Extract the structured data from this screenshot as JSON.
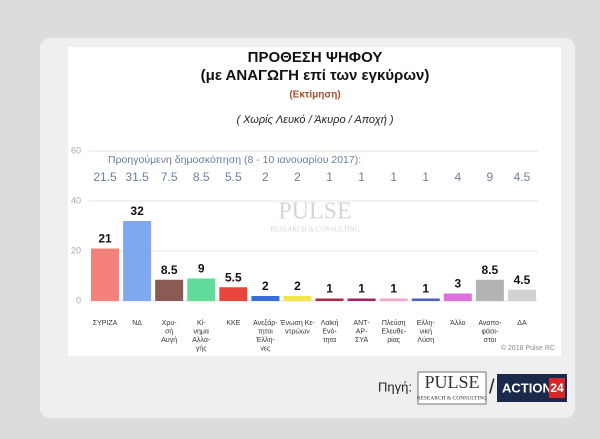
{
  "chart_data": {
    "type": "bar",
    "title": "ΠΡΟΘΕΣΗ ΨΗΦΟΥ",
    "subtitle": "(με ΑΝΑΓΩΓΗ επί των εγκύρων)",
    "estimate_note": "(Εκτίμηση)",
    "filter_note": "( Χωρίς Λευκό / Άκυρο / Αποχή )",
    "previous_label": "Προηγούμενη δημοσκόπηση (8 - 10 ιανουαρίου 2017):",
    "previous_values": [
      21.5,
      31.5,
      7.5,
      8.5,
      5.5,
      2,
      2,
      1,
      1,
      1,
      1,
      4,
      9,
      4.5
    ],
    "categories": [
      [
        "ΣΥΡΙΖΑ"
      ],
      [
        "ΝΔ"
      ],
      [
        "Χρυ-",
        "σή",
        "Αυγή"
      ],
      [
        "Κί-",
        "νημα",
        "Αλλα-",
        "γής"
      ],
      [
        "ΚΚΕ"
      ],
      [
        "Ανεξάρ-",
        "τητοι",
        "Έλλη-",
        "νες"
      ],
      [
        "Ένωση Κε-",
        "ντρώων"
      ],
      [
        "Λαϊκή",
        "Ενό-",
        "τητα"
      ],
      [
        "ΑΝΤ-",
        "ΑΡ-",
        "ΣΥΑ"
      ],
      [
        "Πλεύση",
        "Ελευθε-",
        "ρίας"
      ],
      [
        "Ελλη-",
        "νική",
        "Λύση"
      ],
      [
        "Άλλο"
      ],
      [
        "Αναπο-",
        "φάσι-",
        "στοι"
      ],
      [
        "ΔΑ"
      ]
    ],
    "values": [
      21,
      32,
      8.5,
      9,
      5.5,
      2,
      2,
      1,
      1,
      1,
      1,
      3,
      8.5,
      4.5
    ],
    "colors": [
      "#f4817a",
      "#7fa8f0",
      "#8a5a55",
      "#5fdc9a",
      "#e8453c",
      "#3a6fd8",
      "#f2e54c",
      "#b02a45",
      "#a0245a",
      "#f0a6c6",
      "#5060c0",
      "#e070e0",
      "#b3b3b3",
      "#d2d2d2"
    ],
    "ylim": [
      0,
      60
    ],
    "yticks": [
      0,
      20,
      40,
      60
    ],
    "grid": true,
    "watermark": "PULSE",
    "watermark_tagline": "RESEARCH & CONSULTING",
    "copyright": "© 2018 Pulse RC"
  },
  "footer": {
    "source_label": "Πηγή:",
    "logo_name": "PULSE",
    "logo_tagline": "RESEARCH & CONSULTING",
    "separator": "/",
    "logo_2_name": "ACTION",
    "logo_2_number": "24"
  }
}
